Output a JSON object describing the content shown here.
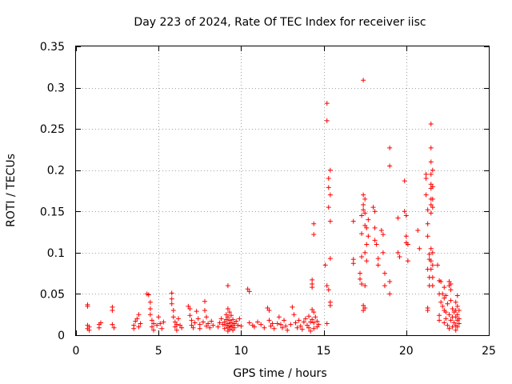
{
  "chart_data": {
    "type": "scatter",
    "title": "Day 223 of 2024, Rate Of TEC Index for receiver iisc",
    "xlabel": "GPS time / hours",
    "ylabel": "ROTI / TECUs",
    "xlim": [
      0,
      25
    ],
    "ylim": [
      0,
      0.35
    ],
    "x_ticks": [
      0,
      5,
      10,
      15,
      20,
      25
    ],
    "x_tick_labels": [
      "0",
      "5",
      "10",
      "15",
      "20",
      "25"
    ],
    "y_ticks": [
      0,
      0.05,
      0.1,
      0.15,
      0.2,
      0.25,
      0.3,
      0.35
    ],
    "y_tick_labels": [
      "0",
      "0.05",
      "0.1",
      "0.15",
      "0.2",
      "0.25",
      "0.3",
      "0.35"
    ],
    "grid": true,
    "marker": "+",
    "color": "#ff0000",
    "series": [
      {
        "name": "ROTI",
        "points": [
          [
            0.7,
            0.037
          ],
          [
            0.7,
            0.035
          ],
          [
            0.7,
            0.012
          ],
          [
            0.7,
            0.008
          ],
          [
            0.8,
            0.01
          ],
          [
            0.8,
            0.006
          ],
          [
            1.4,
            0.013
          ],
          [
            1.4,
            0.009
          ],
          [
            1.5,
            0.015
          ],
          [
            2.2,
            0.034
          ],
          [
            2.2,
            0.03
          ],
          [
            2.2,
            0.013
          ],
          [
            2.3,
            0.009
          ],
          [
            3.5,
            0.012
          ],
          [
            3.5,
            0.008
          ],
          [
            3.6,
            0.017
          ],
          [
            3.7,
            0.02
          ],
          [
            3.8,
            0.025
          ],
          [
            3.8,
            0.01
          ],
          [
            3.9,
            0.014
          ],
          [
            4.3,
            0.05
          ],
          [
            4.4,
            0.049
          ],
          [
            4.5,
            0.04
          ],
          [
            4.5,
            0.032
          ],
          [
            4.5,
            0.025
          ],
          [
            4.6,
            0.018
          ],
          [
            4.6,
            0.01
          ],
          [
            4.7,
            0.014
          ],
          [
            4.7,
            0.006
          ],
          [
            4.9,
            0.012
          ],
          [
            5.0,
            0.022
          ],
          [
            5.1,
            0.014
          ],
          [
            5.2,
            0.008
          ],
          [
            5.3,
            0.016
          ],
          [
            5.8,
            0.051
          ],
          [
            5.8,
            0.044
          ],
          [
            5.8,
            0.038
          ],
          [
            5.9,
            0.03
          ],
          [
            5.9,
            0.022
          ],
          [
            6.0,
            0.016
          ],
          [
            6.0,
            0.01
          ],
          [
            6.1,
            0.013
          ],
          [
            6.1,
            0.006
          ],
          [
            6.2,
            0.02
          ],
          [
            6.3,
            0.012
          ],
          [
            6.4,
            0.009
          ],
          [
            6.8,
            0.035
          ],
          [
            6.9,
            0.032
          ],
          [
            6.9,
            0.024
          ],
          [
            7.0,
            0.018
          ],
          [
            7.0,
            0.012
          ],
          [
            7.1,
            0.009
          ],
          [
            7.2,
            0.015
          ],
          [
            7.3,
            0.029
          ],
          [
            7.4,
            0.02
          ],
          [
            7.5,
            0.013
          ],
          [
            7.5,
            0.008
          ],
          [
            7.7,
            0.016
          ],
          [
            7.8,
            0.041
          ],
          [
            7.8,
            0.03
          ],
          [
            7.9,
            0.022
          ],
          [
            7.9,
            0.011
          ],
          [
            8.0,
            0.014
          ],
          [
            8.1,
            0.009
          ],
          [
            8.2,
            0.017
          ],
          [
            8.3,
            0.012
          ],
          [
            8.6,
            0.01
          ],
          [
            8.7,
            0.015
          ],
          [
            8.8,
            0.02
          ],
          [
            8.9,
            0.013
          ],
          [
            9.0,
            0.016
          ],
          [
            9.0,
            0.008
          ],
          [
            9.1,
            0.025
          ],
          [
            9.1,
            0.019
          ],
          [
            9.1,
            0.012
          ],
          [
            9.2,
            0.06
          ],
          [
            9.2,
            0.032
          ],
          [
            9.2,
            0.022
          ],
          [
            9.2,
            0.014
          ],
          [
            9.2,
            0.009
          ],
          [
            9.2,
            0.005
          ],
          [
            9.3,
            0.028
          ],
          [
            9.3,
            0.018
          ],
          [
            9.3,
            0.011
          ],
          [
            9.3,
            0.007
          ],
          [
            9.4,
            0.024
          ],
          [
            9.4,
            0.015
          ],
          [
            9.4,
            0.01
          ],
          [
            9.5,
            0.019
          ],
          [
            9.5,
            0.012
          ],
          [
            9.5,
            0.006
          ],
          [
            9.6,
            0.014
          ],
          [
            9.6,
            0.009
          ],
          [
            9.7,
            0.017
          ],
          [
            9.8,
            0.012
          ],
          [
            9.9,
            0.02
          ],
          [
            10.0,
            0.011
          ],
          [
            10.4,
            0.056
          ],
          [
            10.5,
            0.053
          ],
          [
            10.5,
            0.015
          ],
          [
            10.7,
            0.012
          ],
          [
            10.8,
            0.01
          ],
          [
            11.0,
            0.016
          ],
          [
            11.2,
            0.013
          ],
          [
            11.4,
            0.009
          ],
          [
            11.6,
            0.033
          ],
          [
            11.7,
            0.03
          ],
          [
            11.7,
            0.018
          ],
          [
            11.8,
            0.011
          ],
          [
            11.9,
            0.014
          ],
          [
            12.0,
            0.008
          ],
          [
            12.2,
            0.014
          ],
          [
            12.3,
            0.022
          ],
          [
            12.4,
            0.013
          ],
          [
            12.5,
            0.009
          ],
          [
            12.6,
            0.018
          ],
          [
            12.7,
            0.011
          ],
          [
            12.8,
            0.006
          ],
          [
            13.0,
            0.013
          ],
          [
            13.1,
            0.034
          ],
          [
            13.2,
            0.025
          ],
          [
            13.3,
            0.015
          ],
          [
            13.4,
            0.009
          ],
          [
            13.5,
            0.018
          ],
          [
            13.6,
            0.011
          ],
          [
            13.7,
            0.007
          ],
          [
            13.8,
            0.016
          ],
          [
            13.9,
            0.02
          ],
          [
            14.0,
            0.012
          ],
          [
            14.1,
            0.023
          ],
          [
            14.1,
            0.009
          ],
          [
            14.2,
            0.016
          ],
          [
            14.2,
            0.005
          ],
          [
            14.3,
            0.067
          ],
          [
            14.3,
            0.062
          ],
          [
            14.3,
            0.058
          ],
          [
            14.3,
            0.031
          ],
          [
            14.3,
            0.019
          ],
          [
            14.4,
            0.135
          ],
          [
            14.4,
            0.122
          ],
          [
            14.4,
            0.028
          ],
          [
            14.4,
            0.015
          ],
          [
            14.4,
            0.008
          ],
          [
            14.5,
            0.022
          ],
          [
            14.6,
            0.017
          ],
          [
            14.6,
            0.01
          ],
          [
            14.7,
            0.013
          ],
          [
            15.1,
            0.085
          ],
          [
            15.2,
            0.281
          ],
          [
            15.2,
            0.26
          ],
          [
            15.2,
            0.06
          ],
          [
            15.2,
            0.014
          ],
          [
            15.3,
            0.19
          ],
          [
            15.3,
            0.179
          ],
          [
            15.3,
            0.155
          ],
          [
            15.3,
            0.055
          ],
          [
            15.4,
            0.2
          ],
          [
            15.4,
            0.17
          ],
          [
            15.4,
            0.138
          ],
          [
            15.4,
            0.093
          ],
          [
            15.4,
            0.04
          ],
          [
            15.4,
            0.036
          ],
          [
            16.8,
            0.138
          ],
          [
            16.8,
            0.092
          ],
          [
            16.8,
            0.087
          ],
          [
            17.2,
            0.075
          ],
          [
            17.2,
            0.068
          ],
          [
            17.3,
            0.145
          ],
          [
            17.3,
            0.123
          ],
          [
            17.3,
            0.095
          ],
          [
            17.3,
            0.062
          ],
          [
            17.4,
            0.309
          ],
          [
            17.4,
            0.17
          ],
          [
            17.4,
            0.158
          ],
          [
            17.4,
            0.152
          ],
          [
            17.4,
            0.036
          ],
          [
            17.4,
            0.03
          ],
          [
            17.5,
            0.165
          ],
          [
            17.5,
            0.148
          ],
          [
            17.5,
            0.133
          ],
          [
            17.5,
            0.1
          ],
          [
            17.5,
            0.06
          ],
          [
            17.5,
            0.033
          ],
          [
            17.6,
            0.13
          ],
          [
            17.6,
            0.11
          ],
          [
            17.6,
            0.09
          ],
          [
            17.7,
            0.14
          ],
          [
            17.7,
            0.12
          ],
          [
            18.0,
            0.155
          ],
          [
            18.1,
            0.15
          ],
          [
            18.1,
            0.13
          ],
          [
            18.1,
            0.115
          ],
          [
            18.2,
            0.11
          ],
          [
            18.3,
            0.093
          ],
          [
            18.3,
            0.085
          ],
          [
            18.5,
            0.127
          ],
          [
            18.6,
            0.122
          ],
          [
            18.6,
            0.1
          ],
          [
            18.7,
            0.075
          ],
          [
            18.7,
            0.06
          ],
          [
            19.0,
            0.227
          ],
          [
            19.0,
            0.205
          ],
          [
            19.0,
            0.05
          ],
          [
            19.0,
            0.065
          ],
          [
            19.5,
            0.142
          ],
          [
            19.5,
            0.1
          ],
          [
            19.6,
            0.095
          ],
          [
            19.9,
            0.187
          ],
          [
            19.9,
            0.15
          ],
          [
            20.0,
            0.145
          ],
          [
            20.0,
            0.12
          ],
          [
            20.0,
            0.112
          ],
          [
            20.1,
            0.09
          ],
          [
            20.1,
            0.11
          ],
          [
            20.7,
            0.127
          ],
          [
            20.8,
            0.105
          ],
          [
            21.2,
            0.195
          ],
          [
            21.2,
            0.19
          ],
          [
            21.2,
            0.17
          ],
          [
            21.3,
            0.152
          ],
          [
            21.3,
            0.135
          ],
          [
            21.3,
            0.12
          ],
          [
            21.3,
            0.08
          ],
          [
            21.3,
            0.033
          ],
          [
            21.3,
            0.03
          ],
          [
            21.4,
            0.098
          ],
          [
            21.4,
            0.092
          ],
          [
            21.4,
            0.07
          ],
          [
            21.4,
            0.06
          ],
          [
            21.5,
            0.256
          ],
          [
            21.5,
            0.227
          ],
          [
            21.5,
            0.21
          ],
          [
            21.5,
            0.195
          ],
          [
            21.5,
            0.183
          ],
          [
            21.5,
            0.178
          ],
          [
            21.5,
            0.165
          ],
          [
            21.5,
            0.158
          ],
          [
            21.5,
            0.148
          ],
          [
            21.5,
            0.105
          ],
          [
            21.5,
            0.09
          ],
          [
            21.5,
            0.08
          ],
          [
            21.6,
            0.2
          ],
          [
            21.6,
            0.18
          ],
          [
            21.6,
            0.165
          ],
          [
            21.6,
            0.155
          ],
          [
            21.6,
            0.1
          ],
          [
            21.6,
            0.085
          ],
          [
            21.6,
            0.07
          ],
          [
            21.6,
            0.06
          ],
          [
            21.9,
            0.085
          ],
          [
            22.0,
            0.066
          ],
          [
            22.0,
            0.05
          ],
          [
            22.0,
            0.024
          ],
          [
            22.0,
            0.018
          ],
          [
            22.1,
            0.065
          ],
          [
            22.1,
            0.04
          ],
          [
            22.2,
            0.05
          ],
          [
            22.2,
            0.035
          ],
          [
            22.3,
            0.058
          ],
          [
            22.3,
            0.045
          ],
          [
            22.3,
            0.03
          ],
          [
            22.3,
            0.015
          ],
          [
            22.4,
            0.048
          ],
          [
            22.4,
            0.028
          ],
          [
            22.4,
            0.02
          ],
          [
            22.5,
            0.038
          ],
          [
            22.5,
            0.012
          ],
          [
            22.6,
            0.065
          ],
          [
            22.6,
            0.06
          ],
          [
            22.6,
            0.025
          ],
          [
            22.6,
            0.008
          ],
          [
            22.7,
            0.062
          ],
          [
            22.7,
            0.055
          ],
          [
            22.7,
            0.042
          ],
          [
            22.7,
            0.018
          ],
          [
            22.8,
            0.032
          ],
          [
            22.8,
            0.022
          ],
          [
            22.8,
            0.01
          ],
          [
            22.9,
            0.028
          ],
          [
            22.9,
            0.015
          ],
          [
            23.0,
            0.04
          ],
          [
            23.0,
            0.03
          ],
          [
            23.0,
            0.022
          ],
          [
            23.0,
            0.012
          ],
          [
            23.0,
            0.006
          ],
          [
            23.1,
            0.048
          ],
          [
            23.1,
            0.035
          ],
          [
            23.1,
            0.025
          ],
          [
            23.1,
            0.018
          ],
          [
            23.1,
            0.01
          ],
          [
            23.2,
            0.03
          ],
          [
            23.2,
            0.02
          ],
          [
            23.2,
            0.014
          ]
        ]
      }
    ]
  }
}
